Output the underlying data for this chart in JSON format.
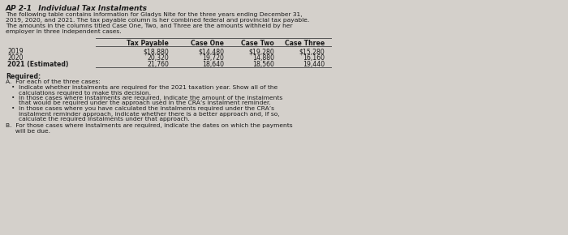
{
  "title": "AP 2-1   Individual Tax Instalments",
  "intro_lines": [
    "The following table contains information for Gladys Nite for the three years ending December 31,",
    "2019, 2020, and 2021. The tax payable column is her combined federal and provincial tax payable.",
    "The amounts in the columns titled Case One, Two, and Three are the amounts withheld by her",
    "employer in three independent cases."
  ],
  "table_headers": [
    "Tax Payable",
    "Case One",
    "Case Two",
    "Case Three"
  ],
  "table_rows": [
    [
      "2019",
      "$18,880",
      "$14,480",
      "$19,280",
      "$15,280"
    ],
    [
      "2020",
      "20,320",
      "19,720",
      "14,880",
      "16,160"
    ],
    [
      "2021 (Estimated)",
      "21,760",
      "18,640",
      "18,560",
      "19,440"
    ]
  ],
  "required_label": "Required:",
  "section_a": "A.  For each of the three cases:",
  "bullets_a": [
    [
      "Indicate whether instalments are required for the 2021 taxation year. Show all of the",
      "calculations required to make this decision."
    ],
    [
      "In those cases where instalments are required, indicate the amount of the instalments",
      "that would be required under the approach used in the CRA’s instalment reminder."
    ],
    [
      "In those cases where you have calculated the instalments required under the CRA’s",
      "instalment reminder approach, indicate whether there is a better approach and, if so,",
      "calculate the required instalments under that approach."
    ]
  ],
  "section_b_lines": [
    "B.  For those cases where instalments are required, indicate the dates on which the payments",
    "     will be due."
  ],
  "bg_color": "#d4d0cb",
  "text_color": "#1a1a1a"
}
